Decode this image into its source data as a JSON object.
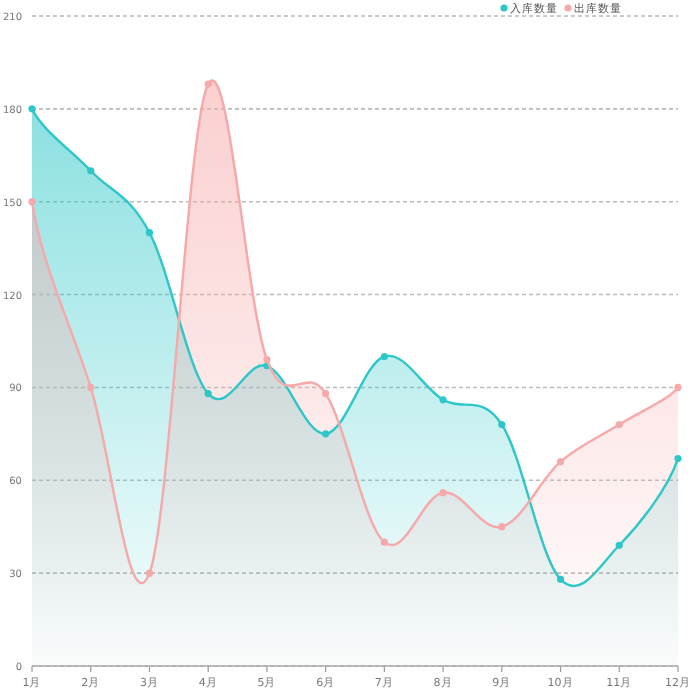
{
  "chart_data": {
    "type": "area",
    "categories": [
      "1月",
      "2月",
      "3月",
      "4月",
      "5月",
      "6月",
      "7月",
      "8月",
      "9月",
      "10月",
      "11月",
      "12月"
    ],
    "series": [
      {
        "name": "入库数量",
        "color": "#2ec7c9",
        "values": [
          180,
          160,
          140,
          88,
          97,
          75,
          100,
          86,
          78,
          28,
          39,
          67
        ]
      },
      {
        "name": "出库数量",
        "color": "#f7a8a8",
        "values": [
          150,
          90,
          30,
          188,
          99,
          88,
          40,
          56,
          45,
          66,
          78,
          90
        ]
      }
    ],
    "ylim": [
      0,
      210
    ],
    "yticks": [
      0,
      30,
      60,
      90,
      120,
      150,
      180,
      210
    ],
    "grid": "y",
    "legend": "top right",
    "marker": "circle"
  }
}
